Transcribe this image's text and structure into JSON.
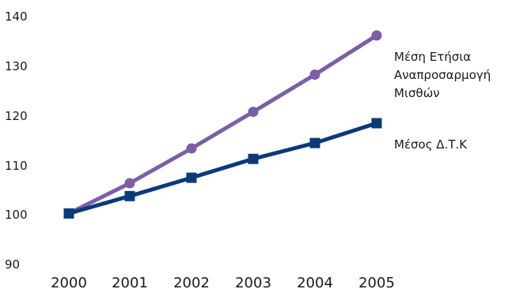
{
  "chart_data": {
    "type": "line",
    "title": "",
    "xlabel": "",
    "ylabel": "",
    "x": [
      "2000",
      "2001",
      "2002",
      "2003",
      "2004",
      "2005"
    ],
    "y_ticks": [
      "140",
      "130",
      "120",
      "110",
      "100",
      "90"
    ],
    "ylim": [
      90,
      140
    ],
    "grid": false,
    "legend": "right, labels beside line ends",
    "series": [
      {
        "name_lines": [
          "Μέση Ετήσια",
          "Αναπροσαρμογή",
          "Μισθών"
        ],
        "values": [
          100.3,
          106.4,
          113.4,
          120.8,
          128.3,
          136.2
        ],
        "color": "#7b5ea7",
        "marker": "circle"
      },
      {
        "name_lines": [
          "Μέσος Δ.Τ.Κ"
        ],
        "values": [
          100.3,
          103.8,
          107.5,
          111.3,
          114.5,
          118.5
        ],
        "color": "#0b3a78",
        "marker": "square"
      }
    ]
  }
}
